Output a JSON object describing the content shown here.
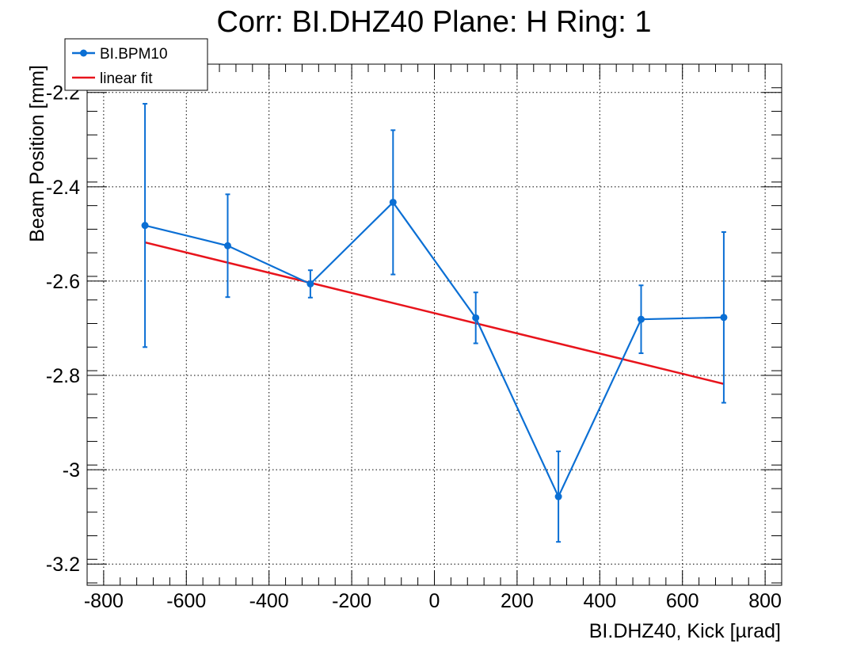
{
  "chart_data": {
    "type": "line",
    "title": "Corr: BI.DHZ40 Plane: H Ring: 1",
    "xlabel": "BI.DHZ40, Kick [µrad]",
    "ylabel": "Beam Position [mm]",
    "xlim": [
      -840,
      840
    ],
    "ylim": [
      -3.245,
      -2.14
    ],
    "x_ticks": [
      -800,
      -600,
      -400,
      -200,
      0,
      200,
      400,
      600,
      800
    ],
    "x_tick_labels": [
      "-800",
      "-600",
      "-400",
      "-200",
      "0",
      "200",
      "400",
      "600",
      "800"
    ],
    "y_ticks": [
      -3.2,
      -3.0,
      -2.8,
      -2.6,
      -2.4,
      -2.2
    ],
    "y_tick_labels": [
      "-3.2",
      "-3",
      "-2.8",
      "-2.6",
      "-2.4",
      "-2.2"
    ],
    "grid": true,
    "legend_position": "top-left",
    "series": [
      {
        "name": "BI.BPM10",
        "color": "#0b6fd4",
        "marker": "circle",
        "x": [
          -700,
          -500,
          -300,
          -100,
          100,
          300,
          500,
          700
        ],
        "y": [
          -2.482,
          -2.525,
          -2.606,
          -2.433,
          -2.678,
          -3.057,
          -2.681,
          -2.677
        ],
        "yerr": [
          0.258,
          0.109,
          0.029,
          0.153,
          0.054,
          0.096,
          0.072,
          0.181
        ]
      },
      {
        "name": "linear fit",
        "color": "#e8141c",
        "x": [
          -700,
          700
        ],
        "y": [
          -2.518,
          -2.818
        ]
      }
    ]
  }
}
